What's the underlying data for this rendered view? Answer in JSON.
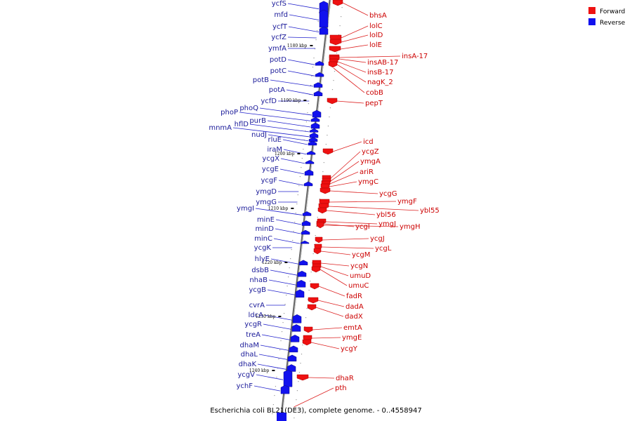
{
  "caption": "Escherichia coli BL21(DE3), complete genome. - 0..4558947",
  "legend": {
    "forward_label": "Forward",
    "reverse_label": "Reverse",
    "forward_color": "#ee1111",
    "reverse_color": "#1111ee"
  },
  "colors": {
    "backbone": "#888888",
    "forward_line": "#dd2222",
    "reverse_line": "#2222cc"
  },
  "ticks": [
    "1180 kbp",
    "1190 kbp",
    "1200 kbp",
    "1210 kbp",
    "1220 kbp",
    "1230 kbp",
    "1240 kbp"
  ],
  "reverse_genes": [
    "ycfS",
    "mfd",
    "ycfT",
    "ycfZ",
    "ymfA",
    "potD",
    "potC",
    "potB",
    "potA",
    "ycfD",
    "phoQ",
    "phoP",
    "purB",
    "hflD",
    "mnmA",
    "nudJ",
    "rluE",
    "iraM",
    "ycgX",
    "ycgE",
    "ycgF",
    "ymgD",
    "ymgG",
    "ymgI",
    "minE",
    "minD",
    "minC",
    "ycgK",
    "hlyE",
    "dsbB",
    "nhaB",
    "ycgB",
    "cvrA",
    "ldcA",
    "ycgR",
    "treA",
    "dhaM",
    "dhaL",
    "dhaK",
    "ycgV",
    "ychF"
  ],
  "forward_genes": [
    "bhsA",
    "lolC",
    "lolD",
    "lolE",
    "insA-17",
    "insAB-17",
    "insB-17",
    "nagK_2",
    "cobB",
    "pepT",
    "icd",
    "ycgZ",
    "ymgA",
    "ariR",
    "ymgC",
    "ycgG",
    "ymgF",
    "ybl55",
    "ybl56",
    "ymgJ",
    "ycgI",
    "ymgH",
    "ycgJ",
    "ycgL",
    "ycgM",
    "ycgN",
    "umuD",
    "umuC",
    "fadR",
    "dadA",
    "dadX",
    "emtA",
    "ymgE",
    "ycgY",
    "dhaR",
    "pth"
  ]
}
